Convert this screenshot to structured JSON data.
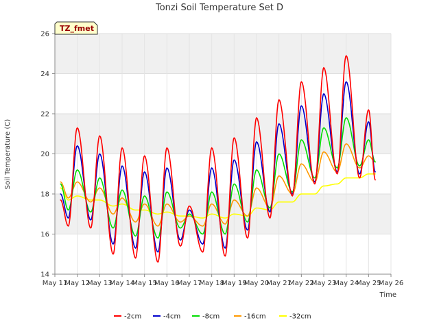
{
  "chart_data": {
    "type": "line",
    "title": "Tonzi Soil Temperature Set D",
    "xlabel": "Time",
    "ylabel": "Soil Temperature (C)",
    "badge": "TZ_fmet",
    "ylim": [
      14,
      26
    ],
    "yticks": [
      14,
      16,
      18,
      20,
      22,
      24,
      26
    ],
    "xlim": [
      11,
      26
    ],
    "xticks": [
      11,
      12,
      13,
      14,
      15,
      16,
      17,
      18,
      19,
      20,
      21,
      22,
      23,
      24,
      25,
      26
    ],
    "xtick_labels": [
      "May 11",
      "May 12",
      "May 13",
      "May 14",
      "May 15",
      "May 16",
      "May 17",
      "May 18",
      "May 19",
      "May 20",
      "May 21",
      "May 22",
      "May 23",
      "May 24",
      "May 25",
      "May 26"
    ],
    "grid": true,
    "legend_position": "bottom",
    "day_extremes": {
      "x": [
        11.25,
        11.6,
        12.0,
        12.6,
        13.0,
        13.6,
        14.0,
        14.6,
        15.0,
        15.6,
        16.0,
        16.6,
        17.0,
        17.6,
        18.0,
        18.6,
        19.0,
        19.6,
        20.0,
        20.6,
        21.0,
        21.6,
        22.0,
        22.6,
        23.0,
        23.6,
        24.0,
        24.6,
        25.0,
        25.3
      ]
    },
    "series": [
      {
        "name": "-2cm",
        "color": "#ff0000",
        "y": [
          17.7,
          16.4,
          21.3,
          16.3,
          20.9,
          15.0,
          20.3,
          14.8,
          19.9,
          14.6,
          20.3,
          15.4,
          17.4,
          15.1,
          20.3,
          14.9,
          20.8,
          15.8,
          21.8,
          16.8,
          22.7,
          17.9,
          23.6,
          18.5,
          24.3,
          19.0,
          24.9,
          18.8,
          22.2,
          18.7
        ]
      },
      {
        "name": "-4cm",
        "color": "#0000cc",
        "y": [
          18.0,
          16.8,
          20.4,
          16.7,
          20.0,
          15.5,
          19.4,
          15.3,
          19.1,
          15.1,
          19.3,
          15.7,
          17.2,
          15.5,
          19.3,
          15.3,
          19.7,
          16.2,
          20.6,
          17.1,
          21.5,
          18.0,
          22.4,
          18.6,
          23.0,
          19.1,
          23.6,
          19.0,
          21.6,
          19.1
        ]
      },
      {
        "name": "-8cm",
        "color": "#00dd00",
        "y": [
          18.5,
          17.2,
          19.2,
          17.1,
          18.8,
          16.3,
          18.2,
          15.9,
          17.9,
          15.8,
          18.1,
          16.3,
          17.0,
          16.0,
          18.1,
          16.0,
          18.5,
          16.6,
          19.2,
          17.3,
          20.0,
          18.1,
          20.7,
          18.8,
          21.3,
          19.3,
          21.8,
          19.4,
          20.7,
          19.6
        ]
      },
      {
        "name": "-16cm",
        "color": "#ff9900",
        "y": [
          18.6,
          17.8,
          18.6,
          17.6,
          18.3,
          17.0,
          17.8,
          16.6,
          17.5,
          16.4,
          17.5,
          16.6,
          16.9,
          16.4,
          17.5,
          16.5,
          17.7,
          16.9,
          18.3,
          17.3,
          18.9,
          18.0,
          19.5,
          18.6,
          20.1,
          19.1,
          20.5,
          19.3,
          19.9,
          19.6
        ]
      },
      {
        "name": "-32cm",
        "color": "#ffff00",
        "y": [
          18.3,
          17.7,
          17.9,
          17.7,
          17.7,
          17.4,
          17.5,
          17.2,
          17.2,
          17.0,
          17.1,
          16.9,
          16.9,
          16.8,
          17.0,
          16.8,
          17.0,
          16.9,
          17.3,
          17.2,
          17.6,
          17.6,
          18.0,
          18.0,
          18.4,
          18.5,
          18.8,
          18.8,
          19.0,
          19.0
        ]
      }
    ]
  }
}
